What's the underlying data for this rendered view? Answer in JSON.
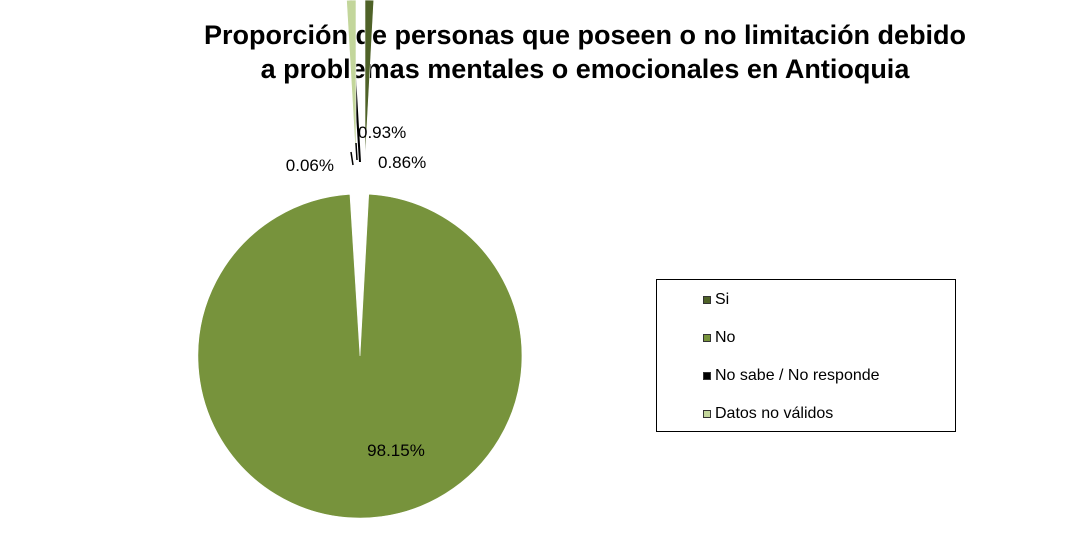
{
  "chart_data": {
    "type": "pie",
    "title_lines": [
      "Proporción de personas que poseen o no limitación debido",
      "a problemas mentales o emocionales en Antioquia"
    ],
    "slices": [
      {
        "name": "Si",
        "value": 0.86,
        "label": "0.86%",
        "color": "#4f6228"
      },
      {
        "name": "No",
        "value": 98.15,
        "label": "98.15%",
        "color": "#77933c"
      },
      {
        "name": "No sabe / No responde",
        "value": 0.06,
        "label": "0.06%",
        "color": "#000000"
      },
      {
        "name": "Datos no válidos",
        "value": 0.93,
        "label": "0.93%",
        "color": "#c3d69b"
      }
    ],
    "legend_position": "right"
  }
}
